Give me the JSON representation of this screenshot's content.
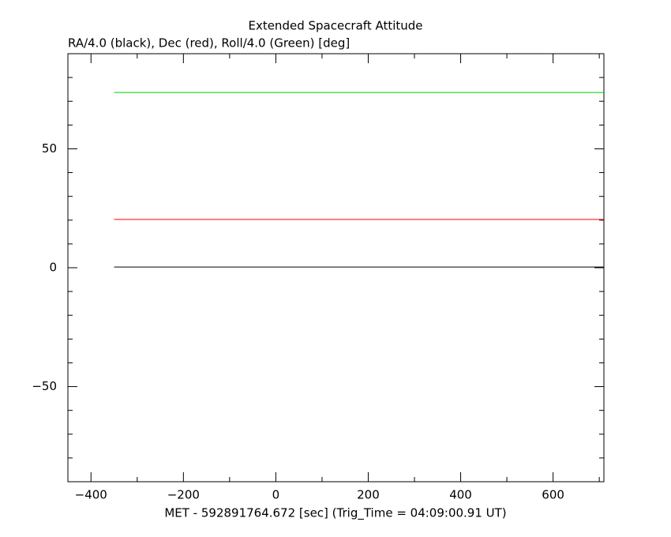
{
  "chart_data": {
    "type": "line",
    "title": "Extended Spacecraft Attitude",
    "subtitle": "RA/4.0 (black), Dec (red), Roll/4.0 (Green) [deg]",
    "xlabel": "MET - 592891764.672 [sec] (Trig_Time = 04:09:00.91 UT)",
    "x": [
      -350,
      710
    ],
    "series": [
      {
        "color": "#000000",
        "values": [
          0.3,
          0.3
        ]
      },
      {
        "color": "#ff0000",
        "values": [
          20.3,
          20.3
        ]
      },
      {
        "color": "#00cc00",
        "values": [
          73.7,
          73.7
        ]
      }
    ],
    "xlim": [
      -450,
      710
    ],
    "ylim": [
      -90,
      90
    ],
    "xticks": [
      {
        "value": -400,
        "label": "−400"
      },
      {
        "value": -200,
        "label": "−200"
      },
      0,
      200,
      400,
      600
    ],
    "yticks": [
      {
        "value": -50,
        "label": "−50"
      },
      0,
      50
    ],
    "xminorticks": [
      -300,
      -100,
      100,
      300,
      500,
      700
    ],
    "yminorticks": [
      -80,
      -70,
      -60,
      -40,
      -30,
      -20,
      -10,
      10,
      20,
      30,
      40,
      60,
      70,
      80
    ]
  }
}
